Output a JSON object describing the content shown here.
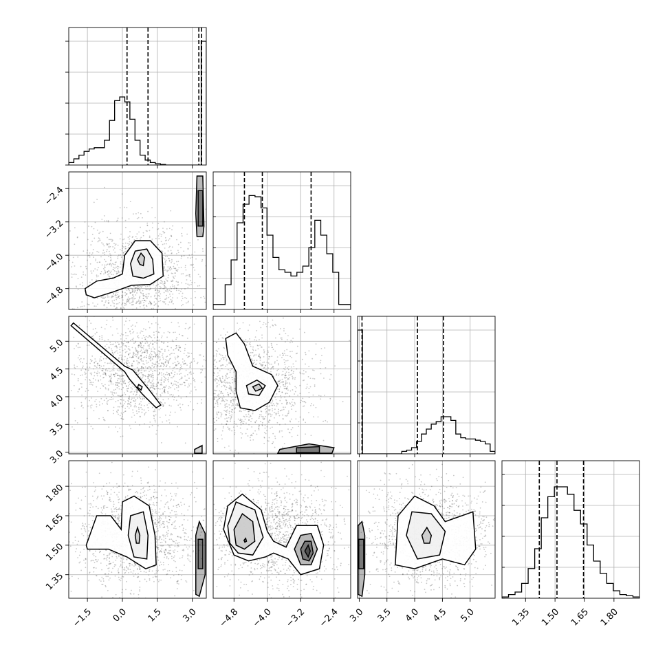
{
  "chart_data": {
    "type": "corner",
    "parameters": [
      {
        "name": "",
        "range": [
          -2.3,
          3.6
        ],
        "ticks": [
          -1.5,
          0.0,
          1.5,
          3.0
        ],
        "tick_labels": [
          "−1.5",
          "0.0",
          "1.5",
          "3.0"
        ],
        "quantiles": [
          0.2,
          1.1,
          3.28,
          3.4
        ],
        "histogram": {
          "counts": [
            0.02,
            0.05,
            0.08,
            0.11,
            0.13,
            0.14,
            0.14,
            0.2,
            0.36,
            0.52,
            0.55,
            0.51,
            0.37,
            0.2,
            0.08,
            0.04,
            0.02,
            0.01,
            0.005,
            0,
            0,
            0,
            0,
            0,
            0,
            0,
            1.0
          ]
        }
      },
      {
        "name": "",
        "range": [
          -5.3,
          -2.0
        ],
        "ticks": [
          -4.8,
          -4.0,
          -3.2,
          -2.4
        ],
        "tick_labels": [
          "−4.8",
          "−4.0",
          "−3.2",
          "−2.4"
        ],
        "quantiles": [
          -4.55,
          -4.12,
          -2.95
        ],
        "histogram": {
          "counts": [
            0.04,
            0.04,
            0.2,
            0.4,
            0.7,
            0.85,
            0.92,
            0.91,
            0.82,
            0.6,
            0.42,
            0.32,
            0.3,
            0.27,
            0.3,
            0.35,
            0.5,
            0.72,
            0.6,
            0.45,
            0.3,
            0.04,
            0.04
          ]
        }
      },
      {
        "name": "",
        "range": [
          2.97,
          5.45
        ],
        "ticks": [
          3.0,
          3.5,
          4.0,
          4.5,
          5.0
        ],
        "tick_labels": [
          "3.0",
          "3.5",
          "4.0",
          "4.5",
          "5.0"
        ],
        "quantiles": [
          3.05,
          4.05,
          4.52
        ],
        "histogram": {
          "counts": [
            1.0,
            0,
            0,
            0,
            0,
            0,
            0,
            0,
            0,
            0.02,
            0.03,
            0.05,
            0.1,
            0.16,
            0.2,
            0.24,
            0.26,
            0.3,
            0.3,
            0.27,
            0.16,
            0.13,
            0.12,
            0.12,
            0.11,
            0.1,
            0.08,
            0.02
          ]
        }
      },
      {
        "name": "",
        "range": [
          1.23,
          1.93
        ],
        "ticks": [
          1.35,
          1.5,
          1.65,
          1.8
        ],
        "tick_labels": [
          "1.35",
          "1.50",
          "1.65",
          "1.80"
        ],
        "quantiles": [
          1.42,
          1.51,
          1.645
        ],
        "histogram": {
          "counts": [
            0.01,
            0.03,
            0.05,
            0.12,
            0.24,
            0.4,
            0.65,
            0.82,
            0.9,
            0.9,
            0.84,
            0.71,
            0.6,
            0.43,
            0.3,
            0.2,
            0.12,
            0.06,
            0.03,
            0.02,
            0.01
          ]
        }
      }
    ],
    "pairs": [
      {
        "x_param": 0,
        "y_param": 1,
        "scatter_center": [
          0.6,
          -4.5
        ],
        "contours": [
          [
            [
              -1.6,
              -4.8
            ],
            [
              -1.1,
              -4.62
            ],
            [
              -0.4,
              -4.55
            ],
            [
              0.0,
              -4.45
            ],
            [
              0.1,
              -4.0
            ],
            [
              0.55,
              -3.65
            ],
            [
              1.2,
              -3.65
            ],
            [
              1.7,
              -3.95
            ],
            [
              1.75,
              -4.5
            ],
            [
              1.2,
              -4.7
            ],
            [
              0.4,
              -4.72
            ],
            [
              -0.4,
              -4.88
            ],
            [
              -1.2,
              -5.02
            ],
            [
              -1.55,
              -4.95
            ]
          ],
          [
            [
              0.35,
              -4.2
            ],
            [
              0.55,
              -3.9
            ],
            [
              1.05,
              -3.85
            ],
            [
              1.3,
              -4.1
            ],
            [
              1.35,
              -4.45
            ],
            [
              0.9,
              -4.55
            ],
            [
              0.45,
              -4.5
            ]
          ],
          [
            [
              0.65,
              -4.1
            ],
            [
              0.8,
              -3.95
            ],
            [
              0.95,
              -4.05
            ],
            [
              0.9,
              -4.25
            ],
            [
              0.75,
              -4.22
            ]
          ],
          [
            [
              3.2,
              -2.1
            ],
            [
              3.45,
              -2.1
            ],
            [
              3.5,
              -3.3
            ],
            [
              3.45,
              -3.55
            ],
            [
              3.2,
              -3.55
            ],
            [
              3.15,
              -3.0
            ]
          ],
          [
            [
              3.25,
              -2.45
            ],
            [
              3.45,
              -2.45
            ],
            [
              3.45,
              -3.3
            ],
            [
              3.25,
              -3.3
            ]
          ]
        ]
      },
      {
        "x_param": 0,
        "y_param": 2,
        "scatter_center": [
          0.6,
          4.45
        ],
        "contours": [
          [
            [
              -2.1,
              5.33
            ],
            [
              0.1,
              4.55
            ],
            [
              0.45,
              4.48
            ],
            [
              1.1,
              4.15
            ],
            [
              1.65,
              3.85
            ],
            [
              1.45,
              3.8
            ],
            [
              0.85,
              4.05
            ],
            [
              0.3,
              4.32
            ],
            [
              0.1,
              4.45
            ],
            [
              -2.2,
              5.28
            ]
          ],
          [
            [
              0.7,
              4.22
            ],
            [
              0.85,
              4.18
            ],
            [
              0.8,
              4.12
            ],
            [
              0.65,
              4.17
            ]
          ],
          [
            [
              3.1,
              3.05
            ],
            [
              3.42,
              3.12
            ],
            [
              3.42,
              2.98
            ],
            [
              3.1,
              2.98
            ]
          ]
        ]
      },
      {
        "x_param": 1,
        "y_param": 2,
        "scatter_center": [
          -4.4,
          4.2
        ],
        "contours": [
          [
            [
              -5.0,
              5.05
            ],
            [
              -4.75,
              5.15
            ],
            [
              -4.55,
              4.95
            ],
            [
              -4.35,
              4.55
            ],
            [
              -3.9,
              4.4
            ],
            [
              -3.75,
              4.2
            ],
            [
              -3.95,
              3.9
            ],
            [
              -4.3,
              3.75
            ],
            [
              -4.65,
              3.8
            ],
            [
              -4.75,
              4.1
            ],
            [
              -4.75,
              4.45
            ],
            [
              -4.95,
              4.75
            ]
          ],
          [
            [
              -4.5,
              4.2
            ],
            [
              -4.25,
              4.3
            ],
            [
              -4.05,
              4.2
            ],
            [
              -4.2,
              4.02
            ],
            [
              -4.45,
              4.05
            ]
          ],
          [
            [
              -4.35,
              4.18
            ],
            [
              -4.2,
              4.23
            ],
            [
              -4.12,
              4.15
            ],
            [
              -4.28,
              4.1
            ]
          ],
          [
            [
              -3.7,
              3.05
            ],
            [
              -3.0,
              3.15
            ],
            [
              -2.4,
              3.08
            ],
            [
              -2.45,
              2.98
            ],
            [
              -3.75,
              2.98
            ]
          ],
          [
            [
              -3.3,
              3.08
            ],
            [
              -2.75,
              3.1
            ],
            [
              -2.75,
              2.99
            ],
            [
              -3.3,
              2.99
            ]
          ]
        ]
      },
      {
        "x_param": 0,
        "y_param": 3,
        "scatter_center": [
          0.6,
          1.55
        ],
        "contours": [
          [
            [
              -1.55,
              1.5
            ],
            [
              -1.1,
              1.65
            ],
            [
              -0.5,
              1.65
            ],
            [
              -0.05,
              1.58
            ],
            [
              0.0,
              1.72
            ],
            [
              0.5,
              1.75
            ],
            [
              1.15,
              1.7
            ],
            [
              1.4,
              1.55
            ],
            [
              1.45,
              1.4
            ],
            [
              1.0,
              1.38
            ],
            [
              0.2,
              1.44
            ],
            [
              -0.6,
              1.48
            ],
            [
              -1.5,
              1.48
            ]
          ],
          [
            [
              0.25,
              1.55
            ],
            [
              0.35,
              1.65
            ],
            [
              0.9,
              1.67
            ],
            [
              1.1,
              1.55
            ],
            [
              1.05,
              1.43
            ],
            [
              0.5,
              1.44
            ]
          ],
          [
            [
              0.55,
              1.55
            ],
            [
              0.65,
              1.59
            ],
            [
              0.75,
              1.55
            ],
            [
              0.72,
              1.51
            ],
            [
              0.6,
              1.51
            ]
          ],
          [
            [
              3.15,
              1.25
            ],
            [
              3.3,
              1.24
            ],
            [
              3.55,
              1.35
            ],
            [
              3.55,
              1.56
            ],
            [
              3.3,
              1.62
            ],
            [
              3.15,
              1.55
            ]
          ],
          [
            [
              3.25,
              1.38
            ],
            [
              3.45,
              1.38
            ],
            [
              3.45,
              1.53
            ],
            [
              3.25,
              1.53
            ]
          ]
        ]
      },
      {
        "x_param": 1,
        "y_param": 3,
        "scatter_center": [
          -3.8,
          1.55
        ],
        "contours": [
          [
            [
              -5.05,
              1.58
            ],
            [
              -4.95,
              1.7
            ],
            [
              -4.6,
              1.76
            ],
            [
              -4.15,
              1.68
            ],
            [
              -4.0,
              1.57
            ],
            [
              -3.85,
              1.52
            ],
            [
              -3.55,
              1.49
            ],
            [
              -3.3,
              1.6
            ],
            [
              -2.8,
              1.6
            ],
            [
              -2.65,
              1.5
            ],
            [
              -2.75,
              1.38
            ],
            [
              -3.2,
              1.35
            ],
            [
              -3.5,
              1.43
            ],
            [
              -3.85,
              1.46
            ],
            [
              -4.05,
              1.44
            ],
            [
              -4.45,
              1.42
            ],
            [
              -4.8,
              1.45
            ]
          ],
          [
            [
              -4.95,
              1.6
            ],
            [
              -4.75,
              1.72
            ],
            [
              -4.3,
              1.68
            ],
            [
              -4.1,
              1.54
            ],
            [
              -4.35,
              1.45
            ],
            [
              -4.7,
              1.46
            ],
            [
              -4.9,
              1.51
            ]
          ],
          [
            [
              -4.8,
              1.58
            ],
            [
              -4.6,
              1.66
            ],
            [
              -4.35,
              1.62
            ],
            [
              -4.3,
              1.52
            ],
            [
              -4.55,
              1.48
            ],
            [
              -4.75,
              1.5
            ]
          ],
          [
            [
              -3.35,
              1.48
            ],
            [
              -3.2,
              1.55
            ],
            [
              -2.95,
              1.56
            ],
            [
              -2.8,
              1.48
            ],
            [
              -2.95,
              1.4
            ],
            [
              -3.2,
              1.4
            ]
          ],
          [
            [
              -3.2,
              1.48
            ],
            [
              -3.1,
              1.52
            ],
            [
              -2.95,
              1.52
            ],
            [
              -2.9,
              1.46
            ],
            [
              -3.0,
              1.42
            ],
            [
              -3.15,
              1.43
            ]
          ],
          [
            [
              -3.1,
              1.47
            ],
            [
              -3.02,
              1.5
            ],
            [
              -2.97,
              1.47
            ],
            [
              -3.02,
              1.44
            ]
          ],
          [
            [
              -4.56,
              1.525
            ],
            [
              -4.52,
              1.535
            ],
            [
              -4.5,
              1.52
            ],
            [
              -4.54,
              1.515
            ]
          ]
        ]
      },
      {
        "x_param": 2,
        "y_param": 3,
        "scatter_center": [
          4.3,
          1.55
        ],
        "contours": [
          [
            [
              3.65,
              1.4
            ],
            [
              3.7,
              1.65
            ],
            [
              4.0,
              1.75
            ],
            [
              4.35,
              1.7
            ],
            [
              4.55,
              1.62
            ],
            [
              5.05,
              1.67
            ],
            [
              5.1,
              1.48
            ],
            [
              4.9,
              1.4
            ],
            [
              4.5,
              1.43
            ],
            [
              4.0,
              1.38
            ]
          ],
          [
            [
              3.85,
              1.55
            ],
            [
              3.95,
              1.67
            ],
            [
              4.3,
              1.66
            ],
            [
              4.55,
              1.57
            ],
            [
              4.45,
              1.45
            ],
            [
              4.05,
              1.43
            ]
          ],
          [
            [
              4.13,
              1.55
            ],
            [
              4.22,
              1.59
            ],
            [
              4.3,
              1.55
            ],
            [
              4.27,
              1.51
            ],
            [
              4.17,
              1.51
            ]
          ],
          [
            [
              2.98,
              1.25
            ],
            [
              3.05,
              1.24
            ],
            [
              3.1,
              1.35
            ],
            [
              3.1,
              1.55
            ],
            [
              3.05,
              1.62
            ],
            [
              2.98,
              1.6
            ]
          ],
          [
            [
              2.99,
              1.38
            ],
            [
              3.08,
              1.38
            ],
            [
              3.08,
              1.53
            ],
            [
              2.99,
              1.53
            ]
          ]
        ]
      }
    ]
  }
}
